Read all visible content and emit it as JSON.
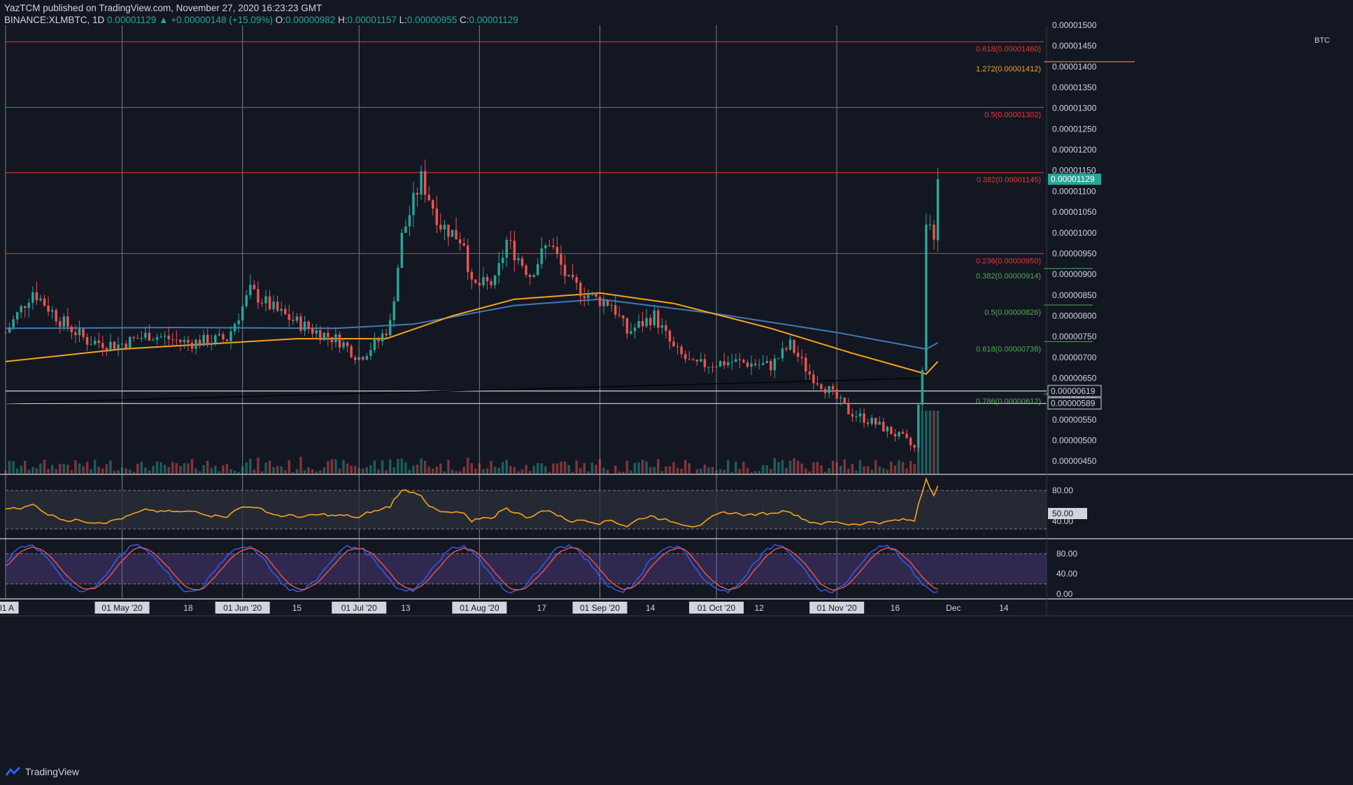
{
  "header": {
    "publisher": "YazTCM",
    "published_text": "published on TradingView.com, November 27, 2020 16:23:23 GMT",
    "symbol": "BINANCE:XLMBTC, 1D",
    "last": "0.00001129",
    "change": "+0.00000148 (+15.09%)",
    "o_label": "O:",
    "o": "0.00000982",
    "h_label": "H:",
    "h": "0.00001157",
    "l_label": "L:",
    "l": "0.00000955",
    "c_label": "C:",
    "c": "0.00001129"
  },
  "footer": {
    "brand": "TradingView"
  },
  "colors": {
    "background": "#131722",
    "bull": "#26a69a",
    "bear": "#ef5350",
    "ma_fast": "#f7a21b",
    "ma_slow": "#3d7ab8",
    "fib_red": "#e53935",
    "fib_green": "#4caf50",
    "rsi_line": "#f7a21b",
    "stoch_k": "#2962ff",
    "stoch_d": "#ef5350"
  },
  "chart_data": {
    "type": "candlestick",
    "currency_label": "BTC",
    "price_axis": {
      "range": [
        4.2e-06,
        1.5e-05
      ],
      "ticks": [
        "0.00001500",
        "0.00001450",
        "0.00001400",
        "0.00001350",
        "0.00001300",
        "0.00001250",
        "0.00001200",
        "0.00001150",
        "0.00001100",
        "0.00001050",
        "0.00001000",
        "0.00000950",
        "0.00000900",
        "0.00000850",
        "0.00000800",
        "0.00000750",
        "0.00000700",
        "0.00000650",
        "0.00000600",
        "0.00000550",
        "0.00000500",
        "0.00000450"
      ]
    },
    "time_axis": {
      "start_date": "2020-04-01",
      "end_date": "2020-12-25",
      "labels": [
        {
          "text": "01 A",
          "date": "2020-04-01",
          "boxed": true
        },
        {
          "text": "01 May '20",
          "date": "2020-05-01",
          "boxed": true
        },
        {
          "text": "18",
          "date": "2020-05-18",
          "boxed": false
        },
        {
          "text": "01 Jun '20",
          "date": "2020-06-01",
          "boxed": true
        },
        {
          "text": "15",
          "date": "2020-06-15",
          "boxed": false
        },
        {
          "text": "01 Jul '20",
          "date": "2020-07-01",
          "boxed": true
        },
        {
          "text": "13",
          "date": "2020-07-13",
          "boxed": false
        },
        {
          "text": "01 Aug '20",
          "date": "2020-08-01",
          "boxed": true
        },
        {
          "text": "17",
          "date": "2020-08-17",
          "boxed": false
        },
        {
          "text": "01 Sep '20",
          "date": "2020-09-01",
          "boxed": true
        },
        {
          "text": "14",
          "date": "2020-09-14",
          "boxed": false
        },
        {
          "text": "01 Oct '20",
          "date": "2020-10-01",
          "boxed": true
        },
        {
          "text": "12",
          "date": "2020-10-12",
          "boxed": false
        },
        {
          "text": "01 Nov '20",
          "date": "2020-11-01",
          "boxed": true
        },
        {
          "text": "16",
          "date": "2020-11-16",
          "boxed": false
        },
        {
          "text": "Dec",
          "date": "2020-12-01",
          "boxed": false
        },
        {
          "text": "14",
          "date": "2020-12-14",
          "boxed": false
        }
      ]
    },
    "fib_levels_resistance": [
      {
        "label": "0.618(0.00001460)",
        "price": 1.46e-05,
        "color": "#e53935"
      },
      {
        "label": "1.272(0.00001412)",
        "price": 1.412e-05,
        "color": "#f7a21b",
        "short": true
      },
      {
        "label": "0.5(0.00001302)",
        "price": 1.302e-05,
        "color": "#e53935"
      },
      {
        "label": "0.382(0.00001145)",
        "price": 1.145e-05,
        "color": "#e53935"
      },
      {
        "label": "0.236(0.00000950)",
        "price": 9.5e-06,
        "color": "#e53935"
      }
    ],
    "fib_levels_support": [
      {
        "label": "0.382(0.00000914)",
        "price": 9.14e-06
      },
      {
        "label": "0.5(0.00000826)",
        "price": 8.26e-06
      },
      {
        "label": "0.618(0.00000738)",
        "price": 7.38e-06
      },
      {
        "label": "0.786(0.00000612)",
        "price": 6.12e-06
      }
    ],
    "horizontal_levels": [
      {
        "label": "0.00000619",
        "price": 6.19e-06
      },
      {
        "label": "0.00000589",
        "price": 5.89e-06
      }
    ],
    "current_price_label": "0.00001129",
    "rsi": {
      "ticks": [
        {
          "label": "80.00",
          "value": 80,
          "dashed": true
        },
        {
          "label": "50.00",
          "value": 50,
          "boxed": true
        },
        {
          "label": "40.00",
          "value": 40
        }
      ],
      "band": [
        20,
        80
      ]
    },
    "stoch_rsi": {
      "ticks": [
        {
          "label": "80.00",
          "value": 80
        },
        {
          "label": "40.00",
          "value": 40
        },
        {
          "label": "0.00",
          "value": 0
        }
      ],
      "band": [
        20,
        80
      ]
    },
    "anchors": [
      [
        "2020-04-01",
        7.6e-06
      ],
      [
        "2020-04-08",
        8.6e-06
      ],
      [
        "2020-04-15",
        7.9e-06
      ],
      [
        "2020-04-22",
        7.4e-06
      ],
      [
        "2020-04-30",
        7.3e-06
      ],
      [
        "2020-05-08",
        7.55e-06
      ],
      [
        "2020-05-18",
        7.35e-06
      ],
      [
        "2020-05-28",
        7.45e-06
      ],
      [
        "2020-06-03",
        8.6e-06
      ],
      [
        "2020-06-10",
        8.1e-06
      ],
      [
        "2020-06-18",
        7.7e-06
      ],
      [
        "2020-06-26",
        7.4e-06
      ],
      [
        "2020-07-01",
        7e-06
      ],
      [
        "2020-07-06",
        7.4e-06
      ],
      [
        "2020-07-09",
        7.8e-06
      ],
      [
        "2020-07-12",
        9.9e-06
      ],
      [
        "2020-07-17",
        1.13e-05
      ],
      [
        "2020-07-22",
        1.02e-05
      ],
      [
        "2020-07-28",
        9.8e-06
      ],
      [
        "2020-07-30",
        8.7e-06
      ],
      [
        "2020-08-05",
        8.8e-06
      ],
      [
        "2020-08-08",
        9.8e-06
      ],
      [
        "2020-08-14",
        9e-06
      ],
      [
        "2020-08-19",
        9.8e-06
      ],
      [
        "2020-08-24",
        8.8e-06
      ],
      [
        "2020-08-31",
        8.4e-06
      ],
      [
        "2020-09-04",
        8.3e-06
      ],
      [
        "2020-09-08",
        7.6e-06
      ],
      [
        "2020-09-15",
        8e-06
      ],
      [
        "2020-09-20",
        7.2e-06
      ],
      [
        "2020-09-25",
        6.8e-06
      ],
      [
        "2020-10-05",
        6.9e-06
      ],
      [
        "2020-10-15",
        6.8e-06
      ],
      [
        "2020-10-20",
        7.3e-06
      ],
      [
        "2020-10-25",
        6.6e-06
      ],
      [
        "2020-10-30",
        6.2e-06
      ],
      [
        "2020-11-04",
        5.7e-06
      ],
      [
        "2020-11-10",
        5.45e-06
      ],
      [
        "2020-11-18",
        5.05e-06
      ],
      [
        "2020-11-21",
        4.8e-06
      ],
      [
        "2020-11-23",
        6.8e-06
      ],
      [
        "2020-11-24",
        1.03e-05
      ],
      [
        "2020-11-25",
        1e-05
      ],
      [
        "2020-11-26",
        9.82e-06
      ],
      [
        "2020-11-27",
        1.129e-05
      ]
    ],
    "ma_fast": [
      [
        "2020-04-01",
        6.9e-06
      ],
      [
        "2020-05-01",
        7.2e-06
      ],
      [
        "2020-06-15",
        7.45e-06
      ],
      [
        "2020-07-08",
        7.45e-06
      ],
      [
        "2020-07-25",
        8e-06
      ],
      [
        "2020-08-10",
        8.4e-06
      ],
      [
        "2020-09-01",
        8.55e-06
      ],
      [
        "2020-09-20",
        8.3e-06
      ],
      [
        "2020-10-15",
        7.7e-06
      ],
      [
        "2020-11-05",
        7.1e-06
      ],
      [
        "2020-11-24",
        6.6e-06
      ],
      [
        "2020-11-27",
        6.9e-06
      ]
    ],
    "ma_slow": [
      [
        "2020-04-01",
        7.7e-06
      ],
      [
        "2020-05-15",
        7.72e-06
      ],
      [
        "2020-06-25",
        7.7e-06
      ],
      [
        "2020-07-15",
        7.8e-06
      ],
      [
        "2020-08-10",
        8.25e-06
      ],
      [
        "2020-09-01",
        8.4e-06
      ],
      [
        "2020-10-01",
        8.05e-06
      ],
      [
        "2020-11-01",
        7.6e-06
      ],
      [
        "2020-11-24",
        7.2e-06
      ],
      [
        "2020-11-27",
        7.35e-06
      ]
    ],
    "trendline": {
      "from": [
        "2020-04-01",
        5.9e-06
      ],
      "to": [
        "2020-11-23",
        6.5e-06
      ]
    }
  }
}
